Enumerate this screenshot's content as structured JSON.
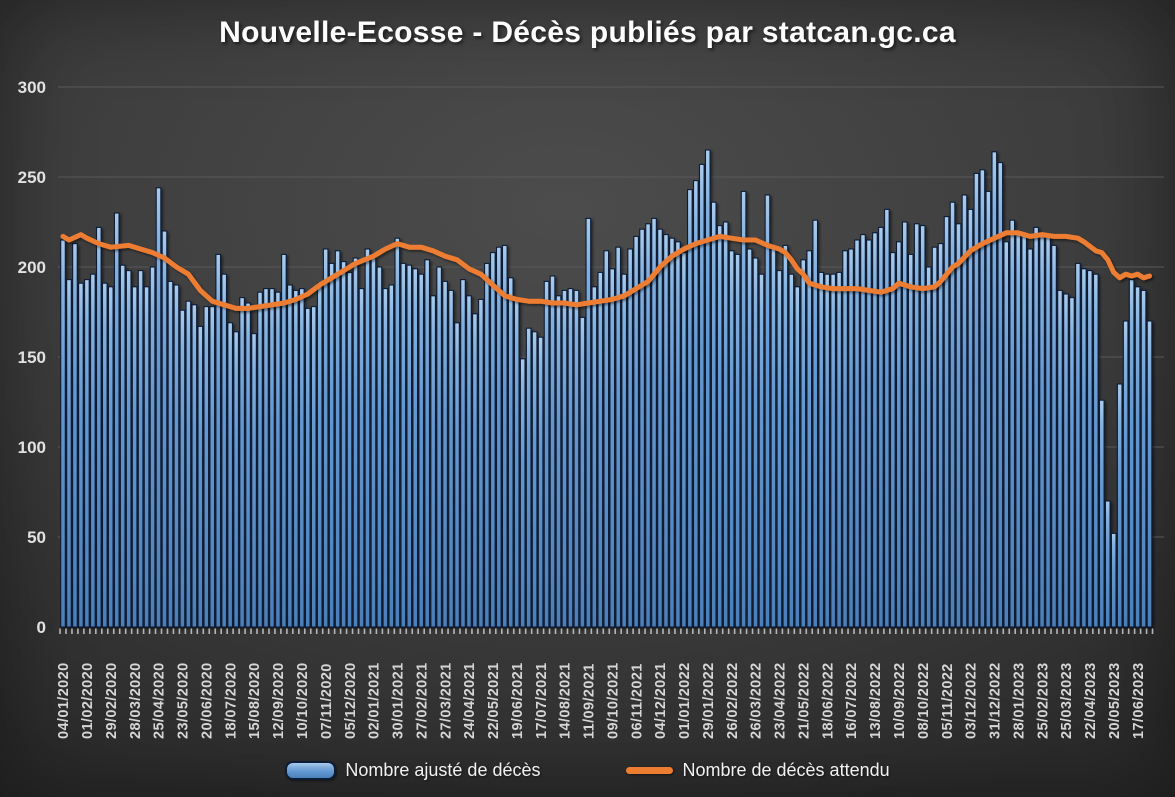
{
  "title": "Nouvelle-Ecosse - Décès publiés par statcan.gc.ca",
  "legend": {
    "bars_label": "Nombre ajusté de décès",
    "line_label": "Nombre de décès attendu"
  },
  "colors": {
    "bar_fill_top": "#A9CBEC",
    "bar_fill_mid": "#6598D0",
    "bar_fill_bottom": "#4C7FB8",
    "bar_border": "#0D1C36",
    "line": "#ED7D31",
    "grid": "#595959",
    "axis_text": "#E2E2E2",
    "x_label_text": "#D6D6D6",
    "tick_mark": "#B5B5B5",
    "background_center": "#4C4C4C",
    "background_edge": "#2B2B2B",
    "title_text": "#FDFDFD"
  },
  "chart_data": {
    "type": "bar",
    "title": "Nouvelle-Ecosse - Décès publiés par statcan.gc.ca",
    "xlabel": "",
    "ylabel": "",
    "ylim": [
      0,
      300
    ],
    "y_ticks": [
      0,
      50,
      100,
      150,
      200,
      250,
      300
    ],
    "grid": true,
    "legend_position": "bottom",
    "x_unit": "week",
    "start_date": "04/01/2020",
    "end_date": "01/07/2023",
    "x_tick_every_n_weeks": 4,
    "x_tick_labels": [
      "04/01/2020",
      "01/02/2020",
      "29/02/2020",
      "28/03/2020",
      "25/04/2020",
      "23/05/2020",
      "20/06/2020",
      "18/07/2020",
      "15/08/2020",
      "12/09/2020",
      "10/10/2020",
      "07/11/2020",
      "05/12/2020",
      "02/01/2021",
      "30/01/2021",
      "27/02/2021",
      "27/03/2021",
      "24/04/2021",
      "22/05/2021",
      "19/06/2021",
      "17/07/2021",
      "14/08/2021",
      "11/09/2021",
      "09/10/2021",
      "06/11/2021",
      "04/12/2021",
      "01/01/2022",
      "29/01/2022",
      "26/02/2022",
      "26/03/2022",
      "23/04/2022",
      "21/05/2022",
      "18/06/2022",
      "16/07/2022",
      "13/08/2022",
      "10/09/2022",
      "08/10/2022",
      "05/11/2022",
      "03/12/2022",
      "31/12/2022",
      "28/01/2023",
      "25/02/2023",
      "25/03/2023",
      "22/04/2023",
      "20/05/2023",
      "17/06/2023"
    ],
    "series": [
      {
        "name": "Nombre ajusté de décès",
        "type": "bar",
        "weekly_values": [
          215,
          193,
          213,
          191,
          193,
          196,
          222,
          191,
          189,
          230,
          201,
          198,
          189,
          198,
          189,
          200,
          244,
          220,
          192,
          190,
          176,
          181,
          179,
          167,
          178,
          178,
          207,
          196,
          169,
          164,
          183,
          180,
          163,
          186,
          188,
          188,
          186,
          207,
          190,
          187,
          188,
          177,
          178,
          191,
          210,
          202,
          209,
          203,
          197,
          205,
          188,
          210,
          205,
          200,
          188,
          190,
          216,
          202,
          201,
          199,
          196,
          204,
          184,
          200,
          192,
          187,
          169,
          193,
          184,
          174,
          182,
          202,
          208,
          211,
          212,
          194,
          182,
          149,
          166,
          164,
          161,
          192,
          195,
          184,
          187,
          188,
          187,
          172,
          227,
          189,
          197,
          209,
          199,
          211,
          196,
          210,
          217,
          221,
          224,
          227,
          221,
          218,
          216,
          214,
          208,
          243,
          248,
          257,
          265,
          236,
          223,
          225,
          209,
          207,
          242,
          210,
          205,
          196,
          240,
          210,
          198,
          212,
          196,
          189,
          204,
          209,
          226,
          197,
          196,
          196,
          197,
          209,
          210,
          215,
          218,
          215,
          219,
          222,
          232,
          208,
          214,
          225,
          207,
          224,
          223,
          200,
          211,
          213,
          228,
          236,
          224,
          240,
          232,
          252,
          254,
          242,
          264,
          258,
          214,
          226,
          220,
          218,
          210,
          222,
          217,
          217,
          212,
          187,
          185,
          183,
          202,
          199,
          198,
          196,
          126,
          70,
          52,
          135,
          170,
          193,
          189,
          187,
          170
        ]
      },
      {
        "name": "Nombre de décès attendu",
        "type": "line",
        "anchor_points_week_value": [
          [
            0,
            217
          ],
          [
            1,
            215
          ],
          [
            3,
            218
          ],
          [
            4,
            216
          ],
          [
            6,
            213
          ],
          [
            8,
            211
          ],
          [
            11,
            212
          ],
          [
            13,
            210
          ],
          [
            15,
            208
          ],
          [
            17,
            205
          ],
          [
            19,
            200
          ],
          [
            21,
            196
          ],
          [
            23,
            187
          ],
          [
            24,
            184
          ],
          [
            25,
            181
          ],
          [
            27,
            179
          ],
          [
            29,
            177
          ],
          [
            31,
            177
          ],
          [
            33,
            178
          ],
          [
            35,
            179
          ],
          [
            37,
            180
          ],
          [
            39,
            182
          ],
          [
            41,
            185
          ],
          [
            43,
            190
          ],
          [
            45,
            194
          ],
          [
            47,
            198
          ],
          [
            49,
            202
          ],
          [
            52,
            206
          ],
          [
            54,
            210
          ],
          [
            56,
            213
          ],
          [
            58,
            211
          ],
          [
            60,
            211
          ],
          [
            62,
            209
          ],
          [
            64,
            206
          ],
          [
            66,
            204
          ],
          [
            68,
            199
          ],
          [
            70,
            196
          ],
          [
            72,
            190
          ],
          [
            74,
            184
          ],
          [
            76,
            182
          ],
          [
            78,
            181
          ],
          [
            80,
            181
          ],
          [
            82,
            180
          ],
          [
            84,
            180
          ],
          [
            86,
            179
          ],
          [
            88,
            180
          ],
          [
            90,
            181
          ],
          [
            92,
            182
          ],
          [
            94,
            184
          ],
          [
            96,
            188
          ],
          [
            98,
            192
          ],
          [
            100,
            200
          ],
          [
            102,
            206
          ],
          [
            104,
            210
          ],
          [
            106,
            213
          ],
          [
            108,
            215
          ],
          [
            110,
            217
          ],
          [
            112,
            216
          ],
          [
            114,
            215
          ],
          [
            116,
            215
          ],
          [
            118,
            212
          ],
          [
            120,
            210
          ],
          [
            121,
            208
          ],
          [
            122,
            204
          ],
          [
            123,
            199
          ],
          [
            124,
            196
          ],
          [
            125,
            191
          ],
          [
            127,
            189
          ],
          [
            129,
            188
          ],
          [
            131,
            188
          ],
          [
            133,
            188
          ],
          [
            135,
            187
          ],
          [
            137,
            186
          ],
          [
            139,
            188
          ],
          [
            140,
            191
          ],
          [
            142,
            189
          ],
          [
            144,
            188
          ],
          [
            146,
            189
          ],
          [
            147,
            192
          ],
          [
            148,
            196
          ],
          [
            149,
            200
          ],
          [
            150,
            202
          ],
          [
            152,
            209
          ],
          [
            154,
            213
          ],
          [
            156,
            216
          ],
          [
            158,
            219
          ],
          [
            160,
            219
          ],
          [
            162,
            217
          ],
          [
            164,
            218
          ],
          [
            166,
            217
          ],
          [
            168,
            217
          ],
          [
            170,
            216
          ],
          [
            171,
            214
          ],
          [
            173,
            209
          ],
          [
            174,
            208
          ],
          [
            175,
            204
          ],
          [
            176,
            197
          ],
          [
            177,
            194
          ],
          [
            178,
            196
          ],
          [
            179,
            195
          ],
          [
            180,
            196
          ],
          [
            181,
            194
          ],
          [
            182,
            195
          ]
        ]
      }
    ]
  }
}
